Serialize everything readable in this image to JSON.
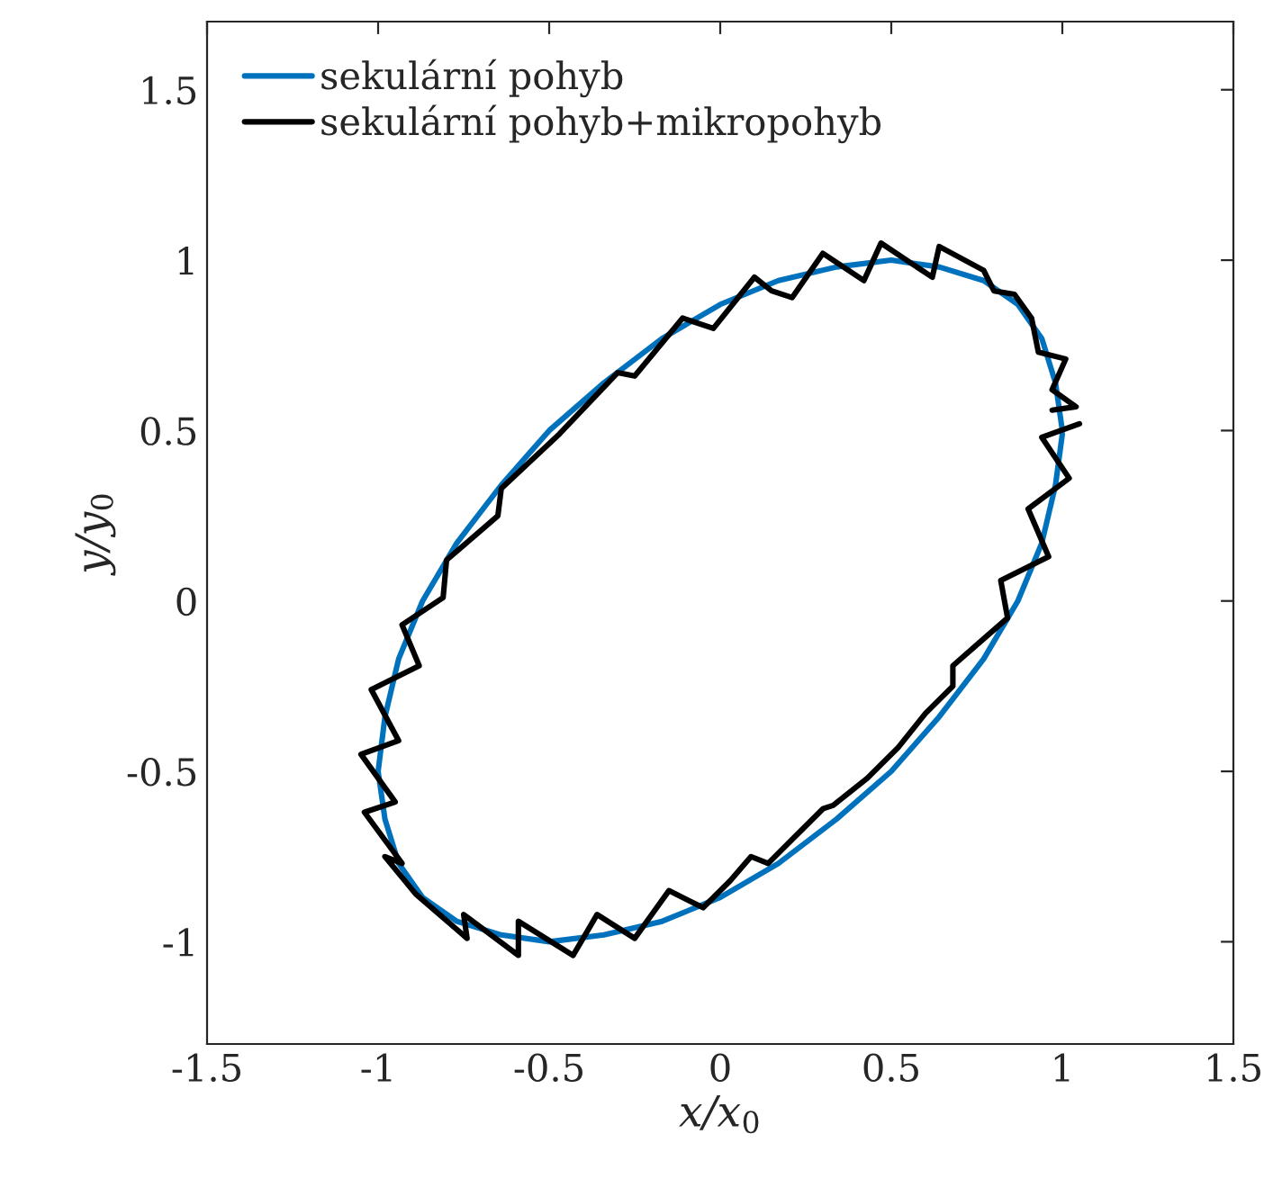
{
  "chart_data": {
    "type": "line",
    "xlabel": "x/x$_{0}$",
    "ylabel": "y/y$_{0}$",
    "xlim": [
      -1.5,
      1.5
    ],
    "ylim": [
      -1.3,
      1.7
    ],
    "xticks": [
      -1.5,
      -1,
      -0.5,
      0,
      0.5,
      1,
      1.5
    ],
    "yticks": [
      -1,
      -0.5,
      0,
      0.5,
      1,
      1.5
    ],
    "grid": false,
    "legend": "top left",
    "marker": "none",
    "line_style": "solid",
    "series": [
      {
        "name": "sekulární pohyb",
        "color": "#0072bd",
        "x": [
          1,
          0.98,
          0.94,
          0.87,
          0.77,
          0.64,
          0.5,
          0.34,
          0.17,
          0,
          -0.17,
          -0.34,
          -0.5,
          -0.64,
          -0.77,
          -0.87,
          -0.94,
          -0.98,
          -1,
          -0.98,
          -0.94,
          -0.87,
          -0.77,
          -0.64,
          -0.5,
          -0.34,
          -0.17,
          0,
          0.17,
          0.34,
          0.5,
          0.64,
          0.77,
          0.87,
          0.94,
          0.98,
          1.0
        ],
        "values": [
          0.5,
          0.64,
          0.77,
          0.87,
          0.94,
          0.98,
          1,
          0.98,
          0.94,
          0.87,
          0.77,
          0.64,
          0.5,
          0.34,
          0.17,
          0,
          -0.17,
          -0.34,
          -0.5,
          -0.64,
          -0.77,
          -0.87,
          -0.94,
          -0.98,
          -1,
          -0.98,
          -0.94,
          -0.87,
          -0.77,
          -0.64,
          -0.5,
          -0.34,
          -0.17,
          0,
          0.17,
          0.34,
          0.49
        ]
      },
      {
        "name": "sekulární pohyb+mikropohyb",
        "color": "#000000",
        "x": [
          1.05,
          0.94,
          1.02,
          0.9,
          0.96,
          0.82,
          0.84,
          0.76,
          0.68,
          0.68,
          0.6,
          0.52,
          0.43,
          0.33,
          0.3,
          0.22,
          0.14,
          0.09,
          0.03,
          -0.05,
          -0.15,
          -0.25,
          -0.36,
          -0.43,
          -0.59,
          -0.59,
          -0.75,
          -0.74,
          -0.89,
          -0.98,
          -0.93,
          -1.04,
          -0.95,
          -1.05,
          -0.94,
          -1.02,
          -0.88,
          -0.93,
          -0.81,
          -0.8,
          -0.65,
          -0.64,
          -0.47,
          -0.3,
          -0.25,
          -0.11,
          -0.02,
          0.1,
          0.15,
          0.21,
          0.3,
          0.42,
          0.47,
          0.62,
          0.64,
          0.77,
          0.8,
          0.86,
          0.91,
          0.93,
          1.01,
          0.97,
          1.04,
          0.97
        ],
        "values": [
          0.52,
          0.48,
          0.36,
          0.27,
          0.13,
          0.06,
          -0.05,
          -0.12,
          -0.19,
          -0.25,
          -0.33,
          -0.43,
          -0.52,
          -0.6,
          -0.61,
          -0.69,
          -0.77,
          -0.75,
          -0.82,
          -0.9,
          -0.85,
          -0.99,
          -0.92,
          -1.04,
          -0.94,
          -1.04,
          -0.92,
          -0.99,
          -0.86,
          -0.75,
          -0.77,
          -0.62,
          -0.59,
          -0.45,
          -0.41,
          -0.26,
          -0.19,
          -0.07,
          0.01,
          0.12,
          0.25,
          0.33,
          0.49,
          0.67,
          0.66,
          0.83,
          0.8,
          0.95,
          0.91,
          0.89,
          1.02,
          0.94,
          1.05,
          0.95,
          1.04,
          0.97,
          0.91,
          0.9,
          0.83,
          0.73,
          0.71,
          0.62,
          0.57,
          0.56
        ]
      }
    ]
  }
}
